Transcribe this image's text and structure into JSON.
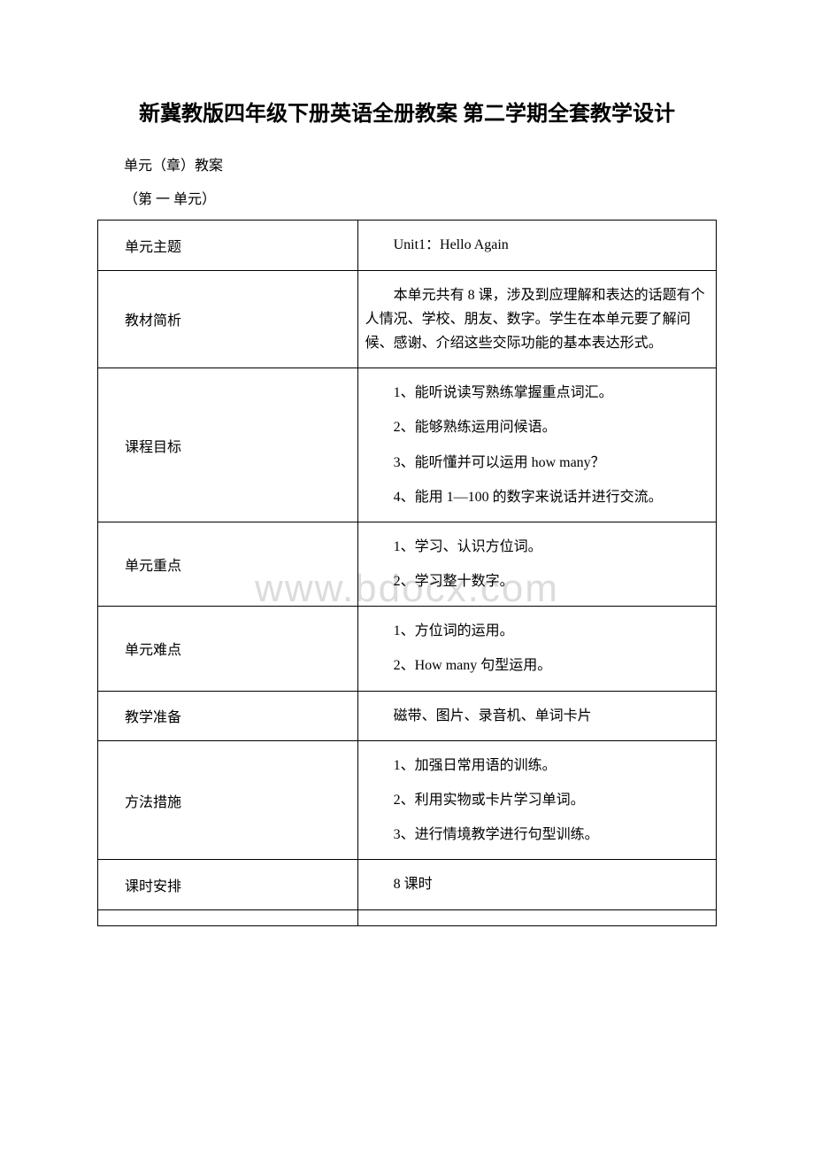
{
  "title": "新冀教版四年级下册英语全册教案 第二学期全套教学设计",
  "preamble": [
    "单元（章）教案",
    "（第 一 单元）"
  ],
  "watermark": "www.bdocx.com",
  "table": {
    "columns_width": [
      "42%",
      "58%"
    ],
    "border_color": "#000000",
    "font_size": 16,
    "rows": [
      {
        "label": "单元主题",
        "content": [
          "Unit1：Hello Again"
        ]
      },
      {
        "label": "教材简析",
        "content": [
          "本单元共有 8 课，涉及到应理解和表达的话题有个人情况、学校、朋友、数字。学生在本单元要了解问候、感谢、介绍这些交际功能的基本表达形式。"
        ]
      },
      {
        "label": "课程目标",
        "content": [
          "1、能听说读写熟练掌握重点词汇。",
          "2、能够熟练运用问候语。",
          "3、能听懂并可以运用 how many？",
          "4、能用 1—100 的数字来说话并进行交流。"
        ]
      },
      {
        "label": "单元重点",
        "content": [
          "1、学习、认识方位词。",
          "2、学习整十数字。"
        ]
      },
      {
        "label": "单元难点",
        "content": [
          "1、方位词的运用。",
          "2、How many 句型运用。"
        ]
      },
      {
        "label": "教学准备",
        "content": [
          "磁带、图片、录音机、单词卡片"
        ]
      },
      {
        "label": "方法措施",
        "content": [
          "1、加强日常用语的训练。",
          "2、利用实物或卡片学习单词。",
          "3、进行情境教学进行句型训练。"
        ]
      },
      {
        "label": "课时安排",
        "content": [
          "8 课时"
        ]
      }
    ]
  }
}
